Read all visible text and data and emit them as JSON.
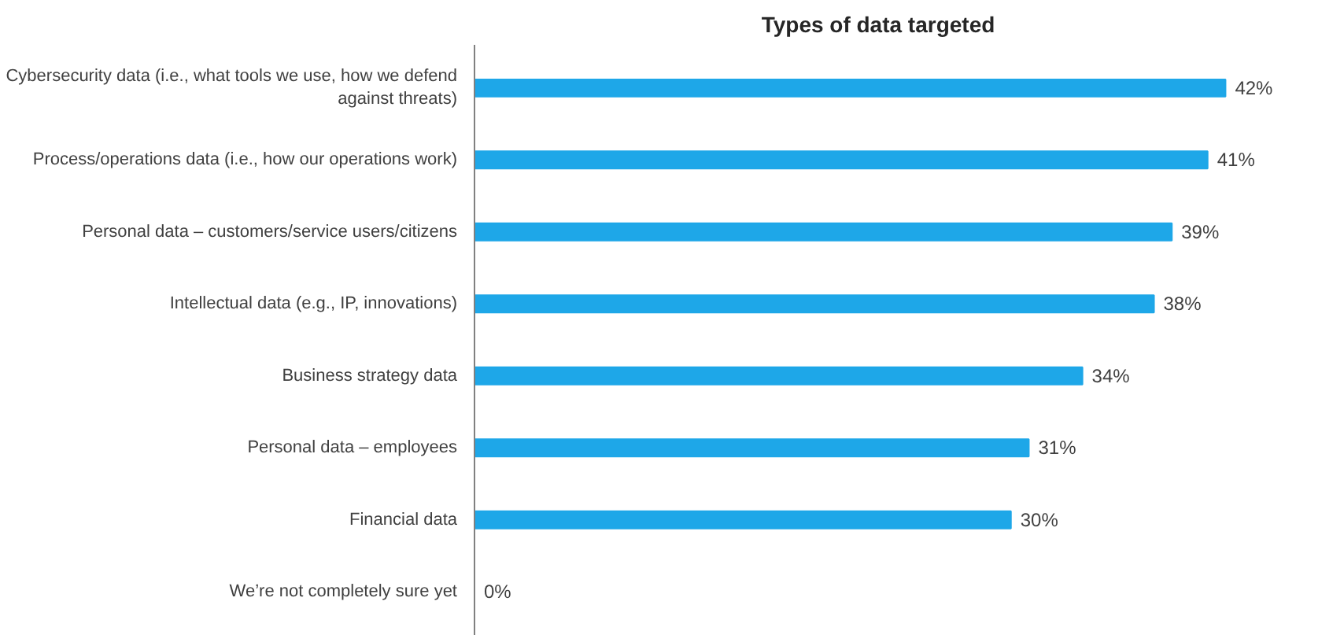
{
  "chart_data": {
    "type": "bar",
    "orientation": "horizontal",
    "title": "Types of data targeted",
    "categories": [
      "Cybersecurity data (i.e., what tools we use, how we defend against threats)",
      "Process/operations data (i.e., how our operations work)",
      "Personal data – customers/service users/citizens",
      "Intellectual data (e.g., IP, innovations)",
      "Business strategy data",
      "Personal data – employees",
      "Financial data",
      "We’re not completely sure yet"
    ],
    "values": [
      42,
      41,
      39,
      38,
      34,
      31,
      30,
      0
    ],
    "value_labels": [
      "42%",
      "41%",
      "39%",
      "38%",
      "34%",
      "31%",
      "30%",
      "0%"
    ],
    "color": "#1ea7e8",
    "tick_labels": "y"
  }
}
